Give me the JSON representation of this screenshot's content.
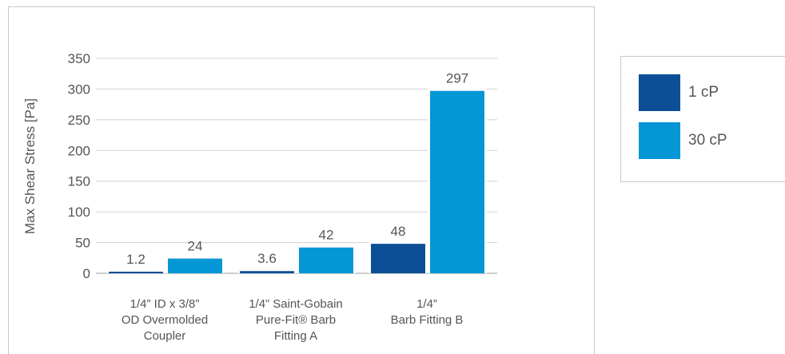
{
  "chart_data": {
    "type": "bar",
    "title": "",
    "xlabel": "",
    "ylabel": "Max Shear Stress [Pa]",
    "ylim": [
      0,
      350
    ],
    "yticks": [
      0,
      50,
      100,
      150,
      200,
      250,
      300,
      350
    ],
    "grid": true,
    "legend_position": "right",
    "categories": [
      [
        "1/4” ID x 3/8”",
        "OD Overmolded",
        "Coupler"
      ],
      [
        "1/4” Saint-Gobain",
        "Pure-Fit® Barb",
        "Fitting A"
      ],
      [
        "1/4”",
        "Barb Fitting B"
      ]
    ],
    "series": [
      {
        "name": "1 cP",
        "color": "#0d4f97",
        "values": [
          1.2,
          3.6,
          48
        ],
        "labels": [
          "1.2",
          "3.6",
          "48"
        ]
      },
      {
        "name": "30 cP",
        "color": "#0596d6",
        "values": [
          24,
          42,
          297
        ],
        "labels": [
          "24",
          "42",
          "297"
        ]
      }
    ]
  }
}
